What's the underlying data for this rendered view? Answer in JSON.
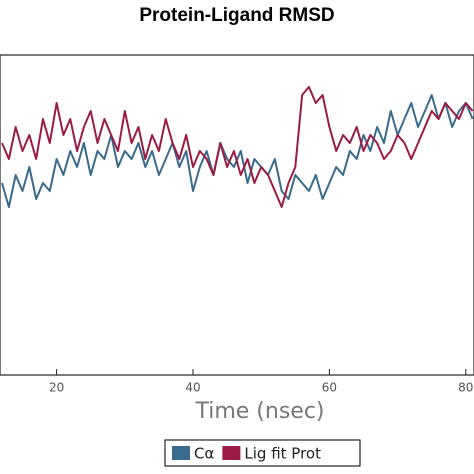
{
  "chart_data": {
    "type": "line",
    "title": "Protein-Ligand RMSD",
    "x_label": "Time (nsec)",
    "x": [
      12,
      13,
      14,
      15,
      16,
      17,
      18,
      19,
      20,
      21,
      22,
      23,
      24,
      25,
      26,
      27,
      28,
      29,
      30,
      31,
      32,
      33,
      34,
      35,
      36,
      37,
      38,
      39,
      40,
      41,
      42,
      43,
      44,
      45,
      46,
      47,
      48,
      49,
      50,
      51,
      52,
      53,
      54,
      55,
      56,
      57,
      58,
      59,
      60,
      61,
      62,
      63,
      64,
      65,
      66,
      67,
      68,
      69,
      70,
      71,
      72,
      73,
      74,
      75,
      76,
      77,
      78,
      79,
      80,
      81
    ],
    "series": [
      {
        "name": "Cα",
        "color": "#3a6a8c",
        "values": [
          2.4,
          2.1,
          2.5,
          2.3,
          2.6,
          2.2,
          2.4,
          2.3,
          2.7,
          2.5,
          2.8,
          2.6,
          2.9,
          2.5,
          2.8,
          2.7,
          3.0,
          2.6,
          2.8,
          2.7,
          2.9,
          2.6,
          2.8,
          2.5,
          2.7,
          2.9,
          2.6,
          2.8,
          2.3,
          2.6,
          2.8,
          2.5,
          2.9,
          2.7,
          2.6,
          2.8,
          2.4,
          2.7,
          2.6,
          2.5,
          2.7,
          2.3,
          2.2,
          2.5,
          2.4,
          2.3,
          2.5,
          2.2,
          2.4,
          2.6,
          2.5,
          2.8,
          2.7,
          3.0,
          2.8,
          3.1,
          2.9,
          3.3,
          3.0,
          3.2,
          3.4,
          3.1,
          3.3,
          3.5,
          3.2,
          3.4,
          3.1,
          3.3,
          3.4,
          3.2
        ]
      },
      {
        "name": "Lig fit Prot",
        "color": "#9b1b45",
        "values": [
          2.9,
          2.7,
          3.1,
          2.8,
          3.0,
          2.7,
          3.2,
          2.9,
          3.4,
          3.0,
          3.2,
          2.8,
          3.1,
          3.3,
          2.9,
          3.2,
          3.0,
          2.8,
          3.3,
          2.9,
          3.1,
          2.7,
          3.0,
          2.8,
          3.2,
          2.9,
          2.7,
          3.0,
          2.6,
          2.8,
          2.7,
          2.5,
          2.9,
          2.6,
          2.8,
          2.5,
          2.7,
          2.4,
          2.6,
          2.5,
          2.3,
          2.1,
          2.4,
          2.6,
          3.5,
          3.6,
          3.4,
          3.5,
          3.1,
          2.8,
          3.0,
          2.9,
          3.1,
          2.8,
          3.0,
          2.9,
          2.7,
          2.8,
          3.0,
          2.9,
          2.7,
          2.9,
          3.1,
          3.3,
          3.2,
          3.4,
          3.3,
          3.2,
          3.4,
          3.3
        ]
      }
    ],
    "xlim": [
      11.7,
      81.2
    ],
    "xticks": [
      20,
      40,
      60,
      80
    ],
    "ylim": [
      0,
      4
    ]
  }
}
